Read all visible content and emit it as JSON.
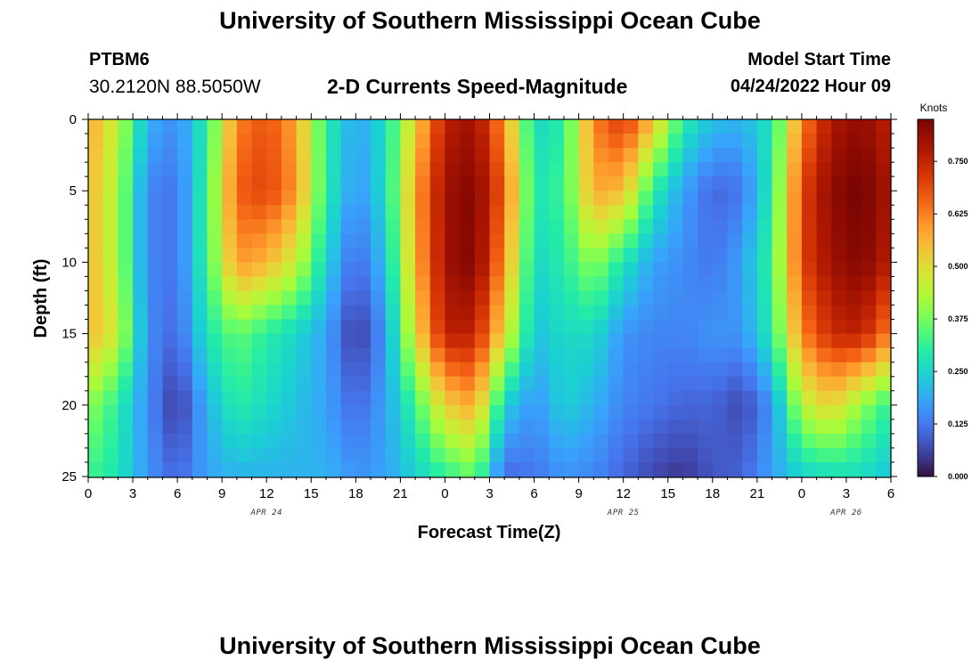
{
  "header": {
    "title": "University of Southern Mississippi Ocean Cube",
    "station_id": "PTBM6",
    "coords": "30.2120N  88.5050W",
    "subtitle": "2-D Currents Speed-Magnitude",
    "start_label": "Model Start Time",
    "start_value": "04/24/2022 Hour 09"
  },
  "footer": {
    "title": "University of Southern Mississippi Ocean Cube"
  },
  "chart_data": {
    "type": "heatmap",
    "title": "2-D Currents Speed-Magnitude",
    "xlabel": "Forecast Time(Z)",
    "ylabel": "Depth (ft)",
    "x_ticks": [
      "0",
      "3",
      "6",
      "9",
      "12",
      "15",
      "18",
      "21",
      "0",
      "3",
      "6",
      "9",
      "12",
      "15",
      "18",
      "21",
      "0",
      "3",
      "6"
    ],
    "date_labels": [
      {
        "label": "APR 24",
        "at_hour": 12
      },
      {
        "label": "APR 25",
        "at_hour": 36
      },
      {
        "label": "APR 26",
        "at_hour": 51
      }
    ],
    "x_range_hours": [
      0,
      54
    ],
    "y_ticks": [
      "0",
      "5",
      "10",
      "15",
      "20",
      "25"
    ],
    "y_range": [
      0,
      25
    ],
    "colorbar": {
      "title": "Knots",
      "ticks": [
        "0.000",
        "0.125",
        "0.250",
        "0.375",
        "0.500",
        "0.625",
        "0.750"
      ],
      "range": [
        0,
        0.85
      ]
    },
    "depths_ft": [
      0,
      5,
      10,
      15,
      20,
      25
    ],
    "hours": [
      0,
      2,
      4,
      6,
      8,
      10,
      12,
      14,
      16,
      18,
      20,
      22,
      24,
      26,
      28,
      30,
      32,
      34,
      36,
      38,
      40,
      42,
      44,
      46,
      48,
      50,
      52,
      54
    ],
    "speed_knots": [
      [
        0.58,
        0.45,
        0.2,
        0.15,
        0.3,
        0.62,
        0.68,
        0.58,
        0.3,
        0.18,
        0.26,
        0.52,
        0.76,
        0.8,
        0.6,
        0.25,
        0.3,
        0.62,
        0.72,
        0.55,
        0.3,
        0.22,
        0.2,
        0.28,
        0.62,
        0.78,
        0.82,
        0.75
      ],
      [
        0.56,
        0.42,
        0.14,
        0.12,
        0.32,
        0.66,
        0.7,
        0.6,
        0.3,
        0.16,
        0.26,
        0.58,
        0.8,
        0.84,
        0.66,
        0.28,
        0.32,
        0.58,
        0.55,
        0.3,
        0.18,
        0.1,
        0.12,
        0.3,
        0.7,
        0.82,
        0.86,
        0.78
      ],
      [
        0.56,
        0.42,
        0.14,
        0.12,
        0.32,
        0.6,
        0.56,
        0.46,
        0.25,
        0.1,
        0.22,
        0.56,
        0.8,
        0.84,
        0.6,
        0.25,
        0.3,
        0.4,
        0.28,
        0.18,
        0.15,
        0.12,
        0.18,
        0.32,
        0.7,
        0.8,
        0.84,
        0.76
      ],
      [
        0.56,
        0.46,
        0.15,
        0.1,
        0.28,
        0.36,
        0.3,
        0.25,
        0.18,
        0.04,
        0.16,
        0.5,
        0.76,
        0.76,
        0.5,
        0.22,
        0.26,
        0.26,
        0.16,
        0.14,
        0.14,
        0.16,
        0.16,
        0.3,
        0.62,
        0.74,
        0.76,
        0.62
      ],
      [
        0.4,
        0.3,
        0.15,
        0.04,
        0.2,
        0.3,
        0.26,
        0.22,
        0.18,
        0.1,
        0.18,
        0.32,
        0.52,
        0.58,
        0.24,
        0.16,
        0.24,
        0.2,
        0.14,
        0.12,
        0.1,
        0.1,
        0.06,
        0.16,
        0.44,
        0.52,
        0.4,
        0.3
      ],
      [
        0.32,
        0.28,
        0.16,
        0.1,
        0.18,
        0.2,
        0.2,
        0.2,
        0.2,
        0.16,
        0.18,
        0.24,
        0.3,
        0.36,
        0.1,
        0.12,
        0.16,
        0.14,
        0.1,
        0.06,
        0.04,
        0.08,
        0.1,
        0.18,
        0.24,
        0.26,
        0.26,
        0.22
      ]
    ]
  }
}
